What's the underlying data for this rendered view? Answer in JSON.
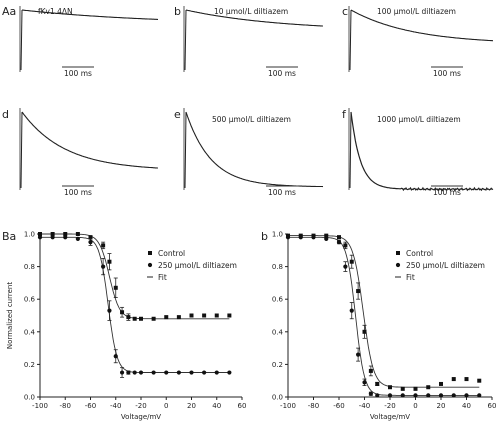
{
  "traces_panel": {
    "panels": [
      {
        "id": "Aa",
        "label": "Aa",
        "annotation": "fKv1.4ΔN",
        "scale_label": "100 ms",
        "fraction_remaining": 0.76,
        "decay_tau_ms": 600
      },
      {
        "id": "b",
        "label": "b",
        "annotation": "10 μmol/L diltiazem",
        "scale_label": "100 ms",
        "fraction_remaining": 0.66,
        "decay_tau_ms": 420
      },
      {
        "id": "c",
        "label": "c",
        "annotation": "100 μmol/L diltiazem",
        "scale_label": "100 ms",
        "fraction_remaining": 0.45,
        "decay_tau_ms": 260
      },
      {
        "id": "d",
        "label": "d",
        "annotation": "",
        "scale_label": "100 ms",
        "fraction_remaining": 0.25,
        "decay_tau_ms": 190
      },
      {
        "id": "e",
        "label": "e",
        "annotation": "500 μmol/L diltiazem",
        "scale_label": "100 ms",
        "fraction_remaining": 0.04,
        "decay_tau_ms": 110
      },
      {
        "id": "f",
        "label": "f",
        "annotation": "1000 μmol/L diltiazem",
        "scale_label": "100 ms",
        "fraction_remaining": 0.01,
        "decay_tau_ms": 40
      }
    ]
  },
  "chart_data": [
    {
      "id": "Ba",
      "panel_label": "Ba",
      "type": "scatter",
      "xlabel": "Voltage/mV",
      "ylabel": "Normalized current",
      "xlim": [
        -100,
        60
      ],
      "ylim": [
        0.0,
        1.0
      ],
      "x_ticks": [
        "-100",
        "-80",
        "-60",
        "-40",
        "-20",
        "0",
        "20",
        "40",
        "60"
      ],
      "y_ticks": [
        "0.0",
        "0.2",
        "0.4",
        "0.6",
        "0.8",
        "1.0"
      ],
      "legend": [
        {
          "name": "Control",
          "marker": "square"
        },
        {
          "name": "250 μmol/L diltiazem",
          "marker": "circle"
        },
        {
          "name": "Fit",
          "marker": "line"
        }
      ],
      "series": [
        {
          "name": "Control",
          "marker": "square",
          "x": [
            -100,
            -90,
            -80,
            -70,
            -60,
            -50,
            -45,
            -40,
            -35,
            -30,
            -25,
            -20,
            -10,
            0,
            10,
            20,
            30,
            40,
            50
          ],
          "y": [
            1.0,
            1.0,
            1.0,
            1.0,
            0.98,
            0.93,
            0.83,
            0.67,
            0.52,
            0.49,
            0.48,
            0.48,
            0.48,
            0.49,
            0.49,
            0.5,
            0.5,
            0.5,
            0.5
          ],
          "yerr": [
            0,
            0,
            0,
            0,
            0.01,
            0.02,
            0.05,
            0.06,
            0.03,
            0.02,
            0,
            0,
            0,
            0,
            0,
            0,
            0,
            0,
            0
          ]
        },
        {
          "name": "250 μmol/L diltiazem",
          "marker": "circle",
          "x": [
            -100,
            -90,
            -80,
            -70,
            -60,
            -50,
            -45,
            -40,
            -35,
            -30,
            -25,
            -20,
            -10,
            0,
            10,
            20,
            30,
            40,
            50
          ],
          "y": [
            0.98,
            0.98,
            0.98,
            0.97,
            0.95,
            0.8,
            0.53,
            0.25,
            0.15,
            0.15,
            0.15,
            0.15,
            0.15,
            0.15,
            0.15,
            0.15,
            0.15,
            0.15,
            0.15
          ],
          "yerr": [
            0,
            0,
            0,
            0,
            0.02,
            0.05,
            0.06,
            0.04,
            0.03,
            0.01,
            0,
            0,
            0,
            0,
            0,
            0,
            0,
            0,
            0
          ]
        }
      ],
      "fits": [
        {
          "name": "Control",
          "top": 1.0,
          "bottom": 0.48,
          "v_half": -45,
          "slope": 4.0
        },
        {
          "name": "250 μmol/L diltiazem",
          "top": 0.98,
          "bottom": 0.15,
          "v_half": -46,
          "slope": 3.5
        }
      ]
    },
    {
      "id": "Bb",
      "panel_label": "b",
      "type": "scatter",
      "xlabel": "Voltage/mV",
      "ylabel": "",
      "xlim": [
        -100,
        60
      ],
      "ylim": [
        0.0,
        1.0
      ],
      "x_ticks": [
        "-100",
        "-80",
        "-60",
        "-40",
        "-20",
        "0",
        "20",
        "40",
        "60"
      ],
      "y_ticks": [
        "0.0",
        "0.2",
        "0.4",
        "0.6",
        "0.8",
        "1.0"
      ],
      "legend": [
        {
          "name": "Control",
          "marker": "square"
        },
        {
          "name": "250 μmol/L diltiazem",
          "marker": "circle"
        },
        {
          "name": "Fit",
          "marker": "line"
        }
      ],
      "series": [
        {
          "name": "Control",
          "marker": "square",
          "x": [
            -100,
            -90,
            -80,
            -70,
            -60,
            -55,
            -50,
            -45,
            -40,
            -35,
            -30,
            -20,
            -10,
            0,
            10,
            20,
            30,
            40,
            50
          ],
          "y": [
            0.99,
            0.99,
            0.99,
            0.99,
            0.98,
            0.93,
            0.83,
            0.65,
            0.4,
            0.16,
            0.08,
            0.06,
            0.05,
            0.05,
            0.06,
            0.08,
            0.11,
            0.11,
            0.1
          ],
          "yerr": [
            0,
            0,
            0,
            0,
            0.01,
            0.02,
            0.04,
            0.05,
            0.04,
            0.03,
            0.01,
            0,
            0,
            0,
            0,
            0,
            0,
            0,
            0
          ]
        },
        {
          "name": "250 μmol/L diltiazem",
          "marker": "circle",
          "x": [
            -100,
            -90,
            -80,
            -70,
            -60,
            -55,
            -50,
            -45,
            -40,
            -35,
            -30,
            -20,
            -10,
            0,
            10,
            20,
            30,
            40,
            50
          ],
          "y": [
            0.98,
            0.98,
            0.98,
            0.97,
            0.95,
            0.8,
            0.53,
            0.26,
            0.09,
            0.02,
            0.01,
            0.01,
            0.01,
            0.01,
            0.01,
            0.01,
            0.01,
            0.01,
            0.01
          ],
          "yerr": [
            0,
            0,
            0,
            0,
            0.01,
            0.03,
            0.05,
            0.04,
            0.02,
            0.01,
            0,
            0,
            0,
            0,
            0,
            0,
            0,
            0,
            0
          ]
        }
      ],
      "fits": [
        {
          "name": "Control",
          "top": 0.99,
          "bottom": 0.06,
          "v_half": -41,
          "slope": 4.0
        },
        {
          "name": "250 μmol/L diltiazem",
          "top": 0.98,
          "bottom": 0.01,
          "v_half": -47,
          "slope": 3.5
        }
      ]
    }
  ]
}
